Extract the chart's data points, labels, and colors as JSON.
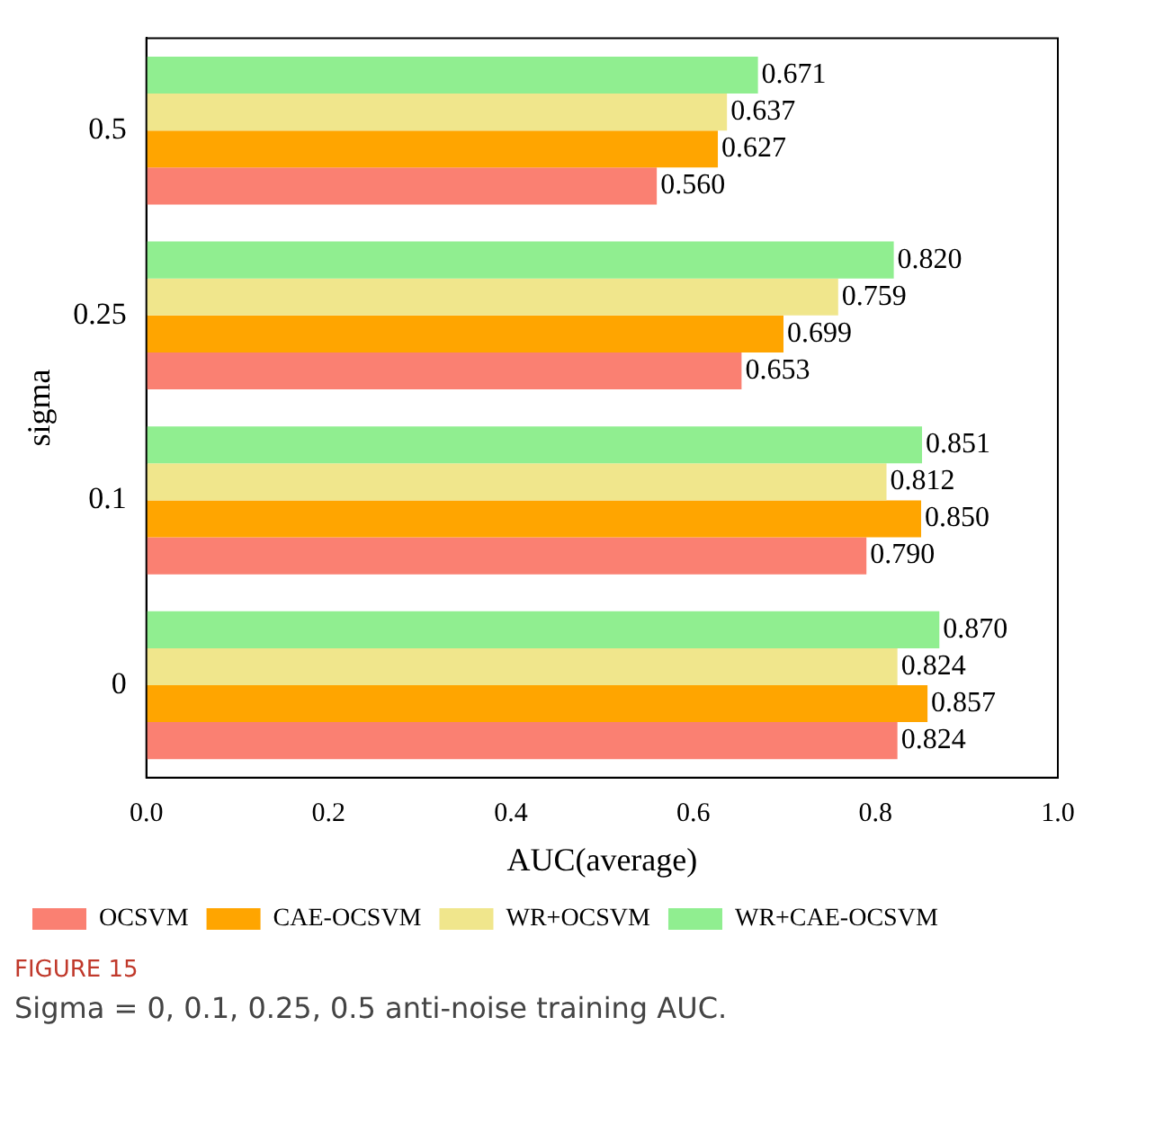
{
  "chart_data": {
    "type": "bar",
    "orientation": "horizontal",
    "xlabel": "AUC(average)",
    "ylabel": "sigma",
    "categories": [
      "0.5",
      "0.25",
      "0.1",
      "0"
    ],
    "series": [
      {
        "name": "OCSVM",
        "color": "#fa8072",
        "values": [
          0.56,
          0.653,
          0.79,
          0.824
        ],
        "value_labels": [
          "0.560",
          "0.653",
          "0.790",
          "0.824"
        ]
      },
      {
        "name": "CAE-OCSVM",
        "color": "#ffa500",
        "values": [
          0.627,
          0.699,
          0.85,
          0.857
        ],
        "value_labels": [
          "0.627",
          "0.699",
          "0.850",
          "0.857"
        ]
      },
      {
        "name": "WR+OCSVM",
        "color": "#f0e68c",
        "values": [
          0.637,
          0.759,
          0.812,
          0.824
        ],
        "value_labels": [
          "0.637",
          "0.759",
          "0.812",
          "0.824"
        ]
      },
      {
        "name": "WR+CAE-OCSVM",
        "color": "#90ee90",
        "values": [
          0.671,
          0.82,
          0.851,
          0.87
        ],
        "value_labels": [
          "0.671",
          "0.820",
          "0.851",
          "0.870"
        ]
      }
    ],
    "xlim": [
      0,
      1
    ],
    "xticks": [
      {
        "value": 0,
        "label": "0.0"
      },
      0.2,
      0.4,
      0.6,
      0.8,
      {
        "value": 1,
        "label": "1.0"
      }
    ],
    "grid": false,
    "legend": "bottom left",
    "annotations": [
      "FIGURE 15",
      "Sigma = 0, 0.1, 0.25, 0.5 anti-noise training AUC."
    ]
  }
}
